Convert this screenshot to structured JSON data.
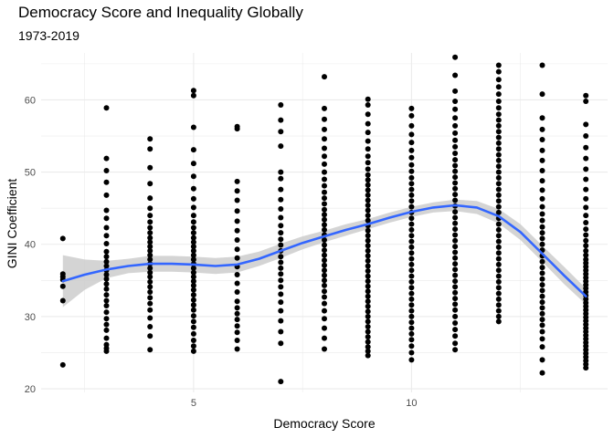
{
  "chart_data": {
    "type": "scatter",
    "title": "Democracy Score and Inequality Globally",
    "subtitle": "1973-2019",
    "xlabel": "Democracy Score",
    "ylabel": "GINI Coefficient",
    "xlim": [
      1.5,
      14.5
    ],
    "ylim": [
      19.5,
      66.5
    ],
    "x_ticks": [
      5,
      10
    ],
    "y_ticks": [
      20,
      30,
      40,
      50,
      60
    ],
    "grid": true,
    "colors": {
      "points": "#000000",
      "smooth_line": "#3366ff",
      "ribbon": "#cccccc",
      "grid": "#ebebeb"
    },
    "points": [
      {
        "x": 2,
        "y": [
          23.3,
          32.2,
          34.2,
          35.1,
          35.5,
          35.9,
          40.8
        ]
      },
      {
        "x": 3,
        "y": [
          25.2,
          25.6,
          26.1,
          27.0,
          28.1,
          28.9,
          29.7,
          30.6,
          31.5,
          32.2,
          33.0,
          33.8,
          34.5,
          35.2,
          35.8,
          36.4,
          37.0,
          37.6,
          38.3,
          39.0,
          40.1,
          41.2,
          42.3,
          43.6,
          44.7,
          46.8,
          48.6,
          50.2,
          51.9,
          58.9
        ]
      },
      {
        "x": 4,
        "y": [
          25.4,
          27.3,
          28.6,
          29.8,
          30.9,
          31.8,
          32.6,
          33.4,
          34.1,
          34.8,
          35.5,
          36.1,
          36.7,
          37.3,
          37.9,
          38.5,
          39.1,
          39.7,
          40.3,
          40.9,
          41.6,
          42.3,
          43.1,
          44.0,
          45.0,
          46.4,
          48.4,
          50.6,
          53.2,
          54.6
        ]
      },
      {
        "x": 5,
        "y": [
          25.2,
          25.9,
          26.7,
          27.6,
          28.5,
          29.3,
          30.1,
          30.9,
          31.6,
          32.3,
          33.0,
          33.7,
          34.3,
          34.9,
          35.5,
          36.1,
          36.7,
          37.3,
          37.9,
          38.5,
          39.1,
          39.7,
          40.3,
          40.9,
          41.6,
          42.3,
          43.1,
          44.0,
          45.1,
          46.3,
          47.7,
          49.4,
          51.2,
          53.1,
          56.2,
          60.6,
          61.3
        ]
      },
      {
        "x": 6,
        "y": [
          25.5,
          26.7,
          27.8,
          28.7,
          29.6,
          30.4,
          31.2,
          32.1,
          33.4,
          34.6,
          35.8,
          36.9,
          38.1,
          39.3,
          40.6,
          41.9,
          43.2,
          44.6,
          46.1,
          47.4,
          48.7,
          56.0,
          56.3
        ]
      },
      {
        "x": 7,
        "y": [
          21.0,
          26.3,
          27.9,
          29.4,
          30.8,
          32.0,
          33.1,
          34.1,
          35.0,
          35.9,
          36.7,
          37.5,
          38.3,
          39.1,
          39.9,
          40.7,
          41.6,
          42.6,
          43.7,
          44.9,
          46.2,
          47.6,
          49.1,
          50.0,
          53.6,
          55.6,
          57.2,
          59.3
        ]
      },
      {
        "x": 8,
        "y": [
          25.5,
          27.0,
          28.4,
          29.7,
          30.8,
          31.8,
          32.7,
          33.5,
          34.3,
          35.0,
          35.7,
          36.4,
          37.1,
          37.8,
          38.5,
          39.2,
          39.9,
          40.6,
          41.3,
          42.0,
          42.7,
          43.4,
          44.1,
          44.8,
          45.6,
          46.4,
          47.2,
          48.1,
          49.0,
          50.0,
          51.1,
          52.2,
          53.3,
          54.6,
          55.9,
          57.3,
          58.8,
          63.2
        ]
      },
      {
        "x": 9,
        "y": [
          24.6,
          25.2,
          25.8,
          26.5,
          27.2,
          27.9,
          28.6,
          29.3,
          30.0,
          30.7,
          31.4,
          32.1,
          32.8,
          33.5,
          34.2,
          34.9,
          35.6,
          36.3,
          37.0,
          37.7,
          38.4,
          39.1,
          39.8,
          40.5,
          41.2,
          41.9,
          42.6,
          43.3,
          44.0,
          44.7,
          45.4,
          46.1,
          46.8,
          47.5,
          48.2,
          48.9,
          49.6,
          50.4,
          51.3,
          52.2,
          53.2,
          54.3,
          55.5,
          56.7,
          58.0,
          59.3,
          60.1
        ]
      },
      {
        "x": 10,
        "y": [
          24.0,
          25.0,
          25.9,
          26.8,
          27.6,
          28.4,
          29.2,
          30.0,
          30.8,
          31.6,
          32.4,
          33.2,
          34.0,
          34.8,
          35.6,
          36.4,
          37.2,
          38.0,
          38.8,
          39.6,
          40.4,
          41.2,
          42.0,
          42.8,
          43.6,
          44.4,
          45.2,
          46.0,
          46.8,
          47.6,
          48.4,
          49.2,
          50.1,
          51.0,
          52.0,
          53.0,
          54.1,
          55.2,
          56.4,
          57.8,
          58.8
        ]
      },
      {
        "x": 11,
        "y": [
          25.4,
          26.3,
          27.3,
          28.2,
          29.1,
          30.0,
          30.9,
          31.7,
          32.5,
          33.3,
          34.1,
          34.9,
          35.7,
          36.5,
          37.3,
          38.1,
          38.9,
          39.7,
          40.5,
          41.3,
          42.1,
          42.9,
          43.7,
          44.5,
          45.3,
          46.1,
          46.9,
          47.7,
          48.5,
          49.3,
          50.1,
          50.9,
          51.7,
          52.6,
          53.5,
          54.4,
          55.4,
          56.4,
          57.5,
          58.7,
          59.8,
          61.2,
          63.4,
          65.9
        ]
      },
      {
        "x": 12,
        "y": [
          29.3,
          30.0,
          30.8,
          31.6,
          32.4,
          33.2,
          34.0,
          34.8,
          35.6,
          36.4,
          37.2,
          38.0,
          38.8,
          39.6,
          40.4,
          41.2,
          42.0,
          42.8,
          43.6,
          44.4,
          45.2,
          46.0,
          46.8,
          47.6,
          48.4,
          49.2,
          50.0,
          50.8,
          51.6,
          52.4,
          53.2,
          54.0,
          54.8,
          55.6,
          56.4,
          57.2,
          58.0,
          58.9,
          59.8,
          60.8,
          61.8,
          62.8,
          63.9,
          64.8
        ]
      },
      {
        "x": 13,
        "y": [
          22.2,
          24.0,
          25.8,
          26.9,
          27.9,
          28.8,
          29.6,
          30.4,
          31.2,
          32.0,
          32.8,
          33.6,
          34.4,
          35.2,
          36.0,
          36.8,
          37.6,
          38.4,
          39.2,
          40.0,
          40.8,
          41.6,
          42.4,
          43.3,
          44.2,
          45.2,
          46.3,
          47.5,
          48.8,
          50.2,
          51.6,
          53.0,
          54.5,
          55.9,
          57.5,
          60.8,
          64.8
        ]
      },
      {
        "x": 14,
        "y": [
          22.9,
          23.4,
          23.9,
          24.4,
          24.9,
          25.4,
          25.9,
          26.4,
          26.9,
          27.4,
          27.9,
          28.4,
          28.9,
          29.4,
          29.9,
          30.4,
          30.9,
          31.4,
          31.9,
          32.4,
          32.9,
          33.4,
          33.9,
          34.4,
          34.9,
          35.4,
          35.9,
          36.4,
          36.9,
          37.4,
          37.9,
          38.5,
          39.1,
          39.8,
          40.5,
          41.3,
          42.1,
          43.0,
          44.0,
          45.1,
          46.3,
          47.6,
          49.0,
          50.4,
          51.9,
          53.4,
          55.0,
          56.6,
          59.8,
          60.6
        ]
      }
    ],
    "smooth": {
      "x": [
        2.0,
        2.5,
        3.0,
        3.5,
        4.0,
        4.5,
        5.0,
        5.5,
        6.0,
        6.5,
        7.0,
        7.5,
        8.0,
        8.5,
        9.0,
        9.5,
        10.0,
        10.5,
        11.0,
        11.5,
        12.0,
        12.5,
        13.0,
        13.5,
        14.0
      ],
      "y": [
        34.9,
        35.8,
        36.5,
        37.0,
        37.3,
        37.3,
        37.2,
        37.0,
        37.2,
        38.0,
        39.1,
        40.2,
        41.1,
        42.0,
        42.8,
        43.7,
        44.5,
        45.1,
        45.4,
        45.1,
        43.9,
        41.7,
        38.7,
        35.7,
        32.8
      ],
      "lower": [
        31.3,
        33.7,
        35.3,
        36.0,
        36.2,
        36.2,
        36.1,
        35.9,
        36.1,
        37.0,
        38.1,
        39.3,
        40.3,
        41.2,
        42.1,
        43.0,
        43.8,
        44.4,
        44.6,
        44.2,
        42.9,
        40.6,
        37.6,
        34.5,
        31.7
      ],
      "upper": [
        38.5,
        37.9,
        37.7,
        38.0,
        38.4,
        38.4,
        38.3,
        38.1,
        38.3,
        39.0,
        40.1,
        41.1,
        41.9,
        42.8,
        43.5,
        44.4,
        45.2,
        45.8,
        46.2,
        46.0,
        44.9,
        42.8,
        39.8,
        36.9,
        33.9
      ]
    }
  }
}
